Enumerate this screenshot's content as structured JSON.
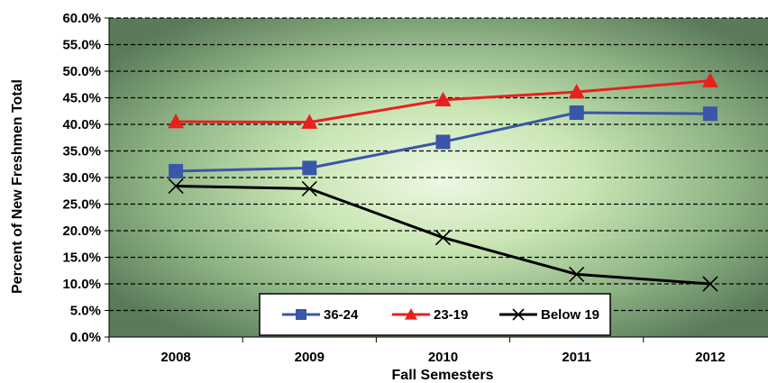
{
  "chart_data": {
    "type": "line",
    "title": "",
    "xlabel": "Fall Semesters",
    "ylabel": "Percent of New Freshmen Total",
    "categories": [
      "2008",
      "2009",
      "2010",
      "2011",
      "2012"
    ],
    "ylim": [
      0,
      60
    ],
    "y_ticks": [
      0,
      5,
      10,
      15,
      20,
      25,
      30,
      35,
      40,
      45,
      50,
      55,
      60
    ],
    "y_tick_labels": [
      "0.0%",
      "5.0%",
      "10.0%",
      "15.0%",
      "20.0%",
      "25.0%",
      "30.0%",
      "35.0%",
      "40.0%",
      "45.0%",
      "50.0%",
      "55.0%",
      "60.0%"
    ],
    "grid": true,
    "legend_position": "bottom-right",
    "series": [
      {
        "name": "36-24",
        "values": [
          31.2,
          31.8,
          36.7,
          42.2,
          42.0
        ],
        "color": "#3a56a8",
        "marker": "square"
      },
      {
        "name": "23-19",
        "values": [
          40.5,
          40.4,
          44.6,
          46.1,
          48.2
        ],
        "color": "#e8201e",
        "marker": "triangle"
      },
      {
        "name": "Below 19",
        "values": [
          28.4,
          27.9,
          18.7,
          11.8,
          10.0
        ],
        "color": "#000000",
        "marker": "x"
      }
    ]
  }
}
